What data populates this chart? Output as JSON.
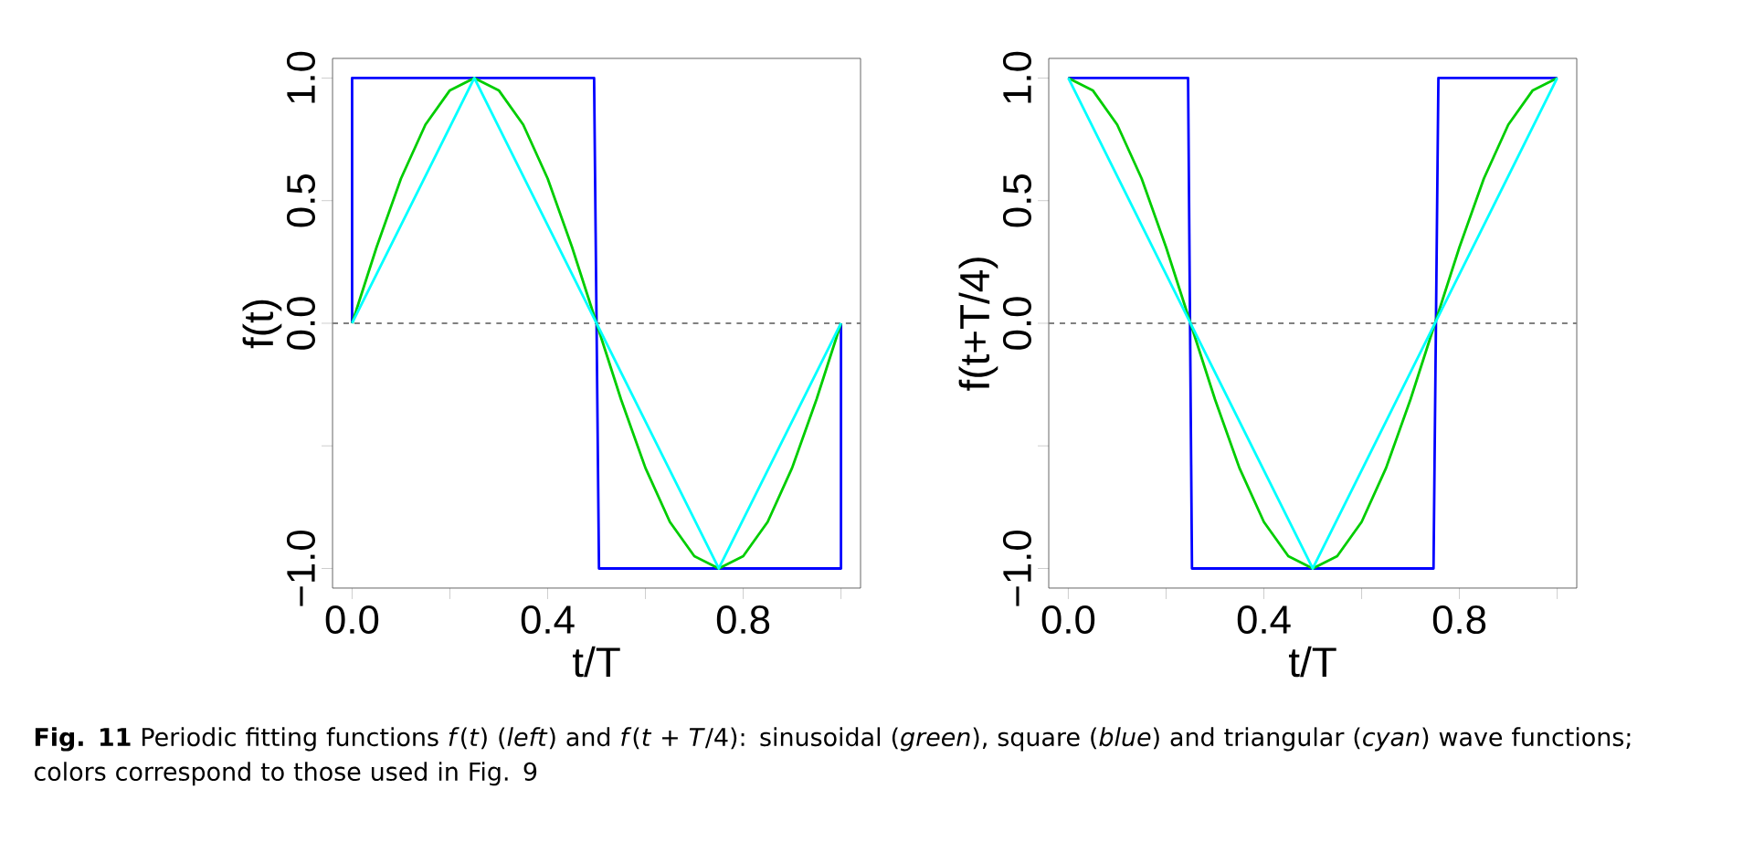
{
  "chart_data": [
    {
      "type": "line",
      "xlabel": "t/T",
      "ylabel": "f(t)",
      "xlim": [
        -0.04,
        1.04
      ],
      "ylim": [
        -1.08,
        1.08
      ],
      "xticks": [
        {
          "value": 0,
          "label": "0.0"
        },
        {
          "value": 0.2,
          "label": null
        },
        {
          "value": 0.4,
          "label": "0.4"
        },
        {
          "value": 0.6,
          "label": null
        },
        {
          "value": 0.8,
          "label": "0.8"
        },
        {
          "value": 1,
          "label": null
        }
      ],
      "yticks": [
        {
          "value": -1,
          "label": "−1.0"
        },
        {
          "value": -0.5,
          "label": null
        },
        {
          "value": 0,
          "label": "0.0"
        },
        {
          "value": 0.5,
          "label": "0.5"
        },
        {
          "value": 1,
          "label": "1.0"
        }
      ],
      "marker": "none",
      "ref_lines": [
        {
          "axis": "y",
          "value": 0,
          "color": "#808080",
          "line_style": "dashed"
        }
      ],
      "series": [
        {
          "color": "#0000ff",
          "x": [
            0,
            0,
            0.495,
            0.505,
            1,
            1
          ],
          "values": [
            0,
            1,
            1,
            -1,
            -1,
            0
          ]
        },
        {
          "color": "#00cd00",
          "x": [
            0,
            0.05,
            0.1,
            0.15,
            0.2,
            0.25,
            0.3,
            0.35,
            0.4,
            0.45,
            0.5,
            0.55,
            0.6,
            0.65,
            0.7,
            0.75,
            0.8,
            0.85,
            0.9,
            0.95,
            1
          ],
          "values": [
            0,
            0.31,
            0.59,
            0.81,
            0.95,
            1,
            0.95,
            0.81,
            0.59,
            0.31,
            0,
            -0.31,
            -0.59,
            -0.81,
            -0.95,
            -1,
            -0.95,
            -0.81,
            -0.59,
            -0.31,
            0
          ]
        },
        {
          "color": "#00ffff",
          "x": [
            0,
            0.25,
            0.75,
            1
          ],
          "values": [
            0,
            1,
            -1,
            0
          ]
        }
      ],
      "annotations": [
        "**Fig. 11** Periodic fitting functions *f*(*t*) (*left*) and *f*(*t* + *T*/4): sinusoidal (*green*), square (*blue*) and triangular (*cyan*) wave functions; colors correspond to those used in Fig. 9"
      ]
    },
    {
      "type": "line",
      "xlabel": "t/T",
      "ylabel": "f(t+T/4)",
      "xlim": [
        -0.04,
        1.04
      ],
      "ylim": [
        -1.08,
        1.08
      ],
      "xticks": [
        {
          "value": 0,
          "label": "0.0"
        },
        {
          "value": 0.2,
          "label": null
        },
        {
          "value": 0.4,
          "label": "0.4"
        },
        {
          "value": 0.6,
          "label": null
        },
        {
          "value": 0.8,
          "label": "0.8"
        },
        {
          "value": 1,
          "label": null
        }
      ],
      "yticks": [
        {
          "value": -1,
          "label": "−1.0"
        },
        {
          "value": -0.5,
          "label": null
        },
        {
          "value": 0,
          "label": "0.0"
        },
        {
          "value": 0.5,
          "label": "0.5"
        },
        {
          "value": 1,
          "label": "1.0"
        }
      ],
      "marker": "none",
      "ref_lines": [
        {
          "axis": "y",
          "value": 0,
          "color": "#808080",
          "line_style": "dashed"
        }
      ],
      "series": [
        {
          "color": "#0000ff",
          "x": [
            0,
            0.245,
            0.253,
            0.747,
            0.757,
            1
          ],
          "values": [
            1,
            1,
            -1,
            -1,
            1,
            1
          ]
        },
        {
          "color": "#00cd00",
          "x": [
            0,
            0.05,
            0.1,
            0.15,
            0.2,
            0.25,
            0.3,
            0.35,
            0.4,
            0.45,
            0.5,
            0.55,
            0.6,
            0.65,
            0.7,
            0.75,
            0.8,
            0.85,
            0.9,
            0.95,
            1
          ],
          "values": [
            1,
            0.95,
            0.81,
            0.59,
            0.31,
            0,
            -0.31,
            -0.59,
            -0.81,
            -0.95,
            -1,
            -0.95,
            -0.81,
            -0.59,
            -0.31,
            0,
            0.31,
            0.59,
            0.81,
            0.95,
            1
          ]
        },
        {
          "color": "#00ffff",
          "x": [
            0,
            0.5,
            1
          ],
          "values": [
            1,
            -1,
            1
          ]
        }
      ]
    }
  ]
}
